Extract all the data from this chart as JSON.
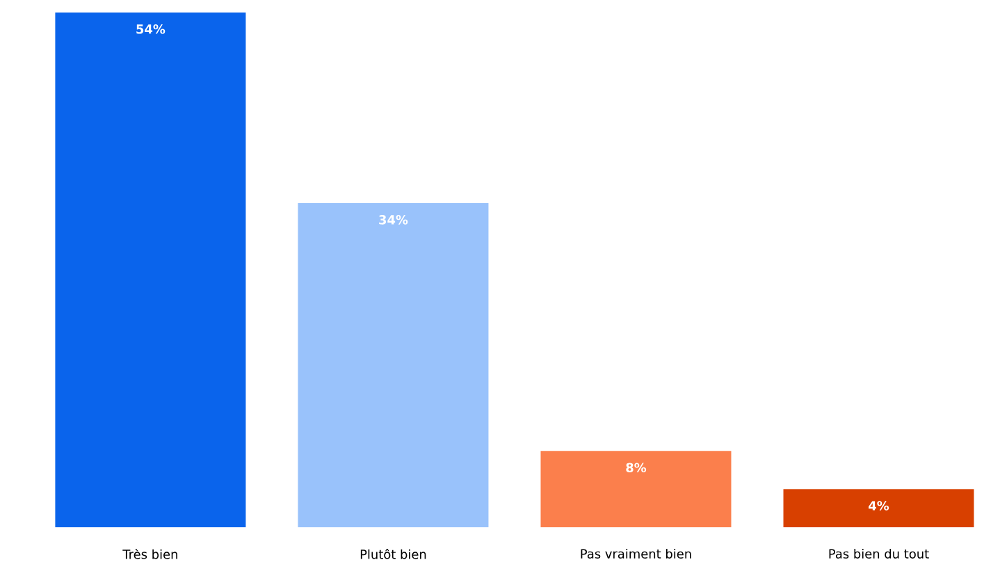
{
  "chart_data": {
    "type": "bar",
    "categories": [
      "Très bien",
      "Plutôt bien",
      "Pas vraiment bien",
      "Pas bien du tout"
    ],
    "values": [
      54,
      34,
      8,
      4
    ],
    "colors": [
      "#0a64ec",
      "#99c2fb",
      "#fb7f4c",
      "#d84000"
    ],
    "data_labels": true,
    "value_labels": [
      "54%",
      "34%",
      "8%",
      "4%"
    ]
  }
}
